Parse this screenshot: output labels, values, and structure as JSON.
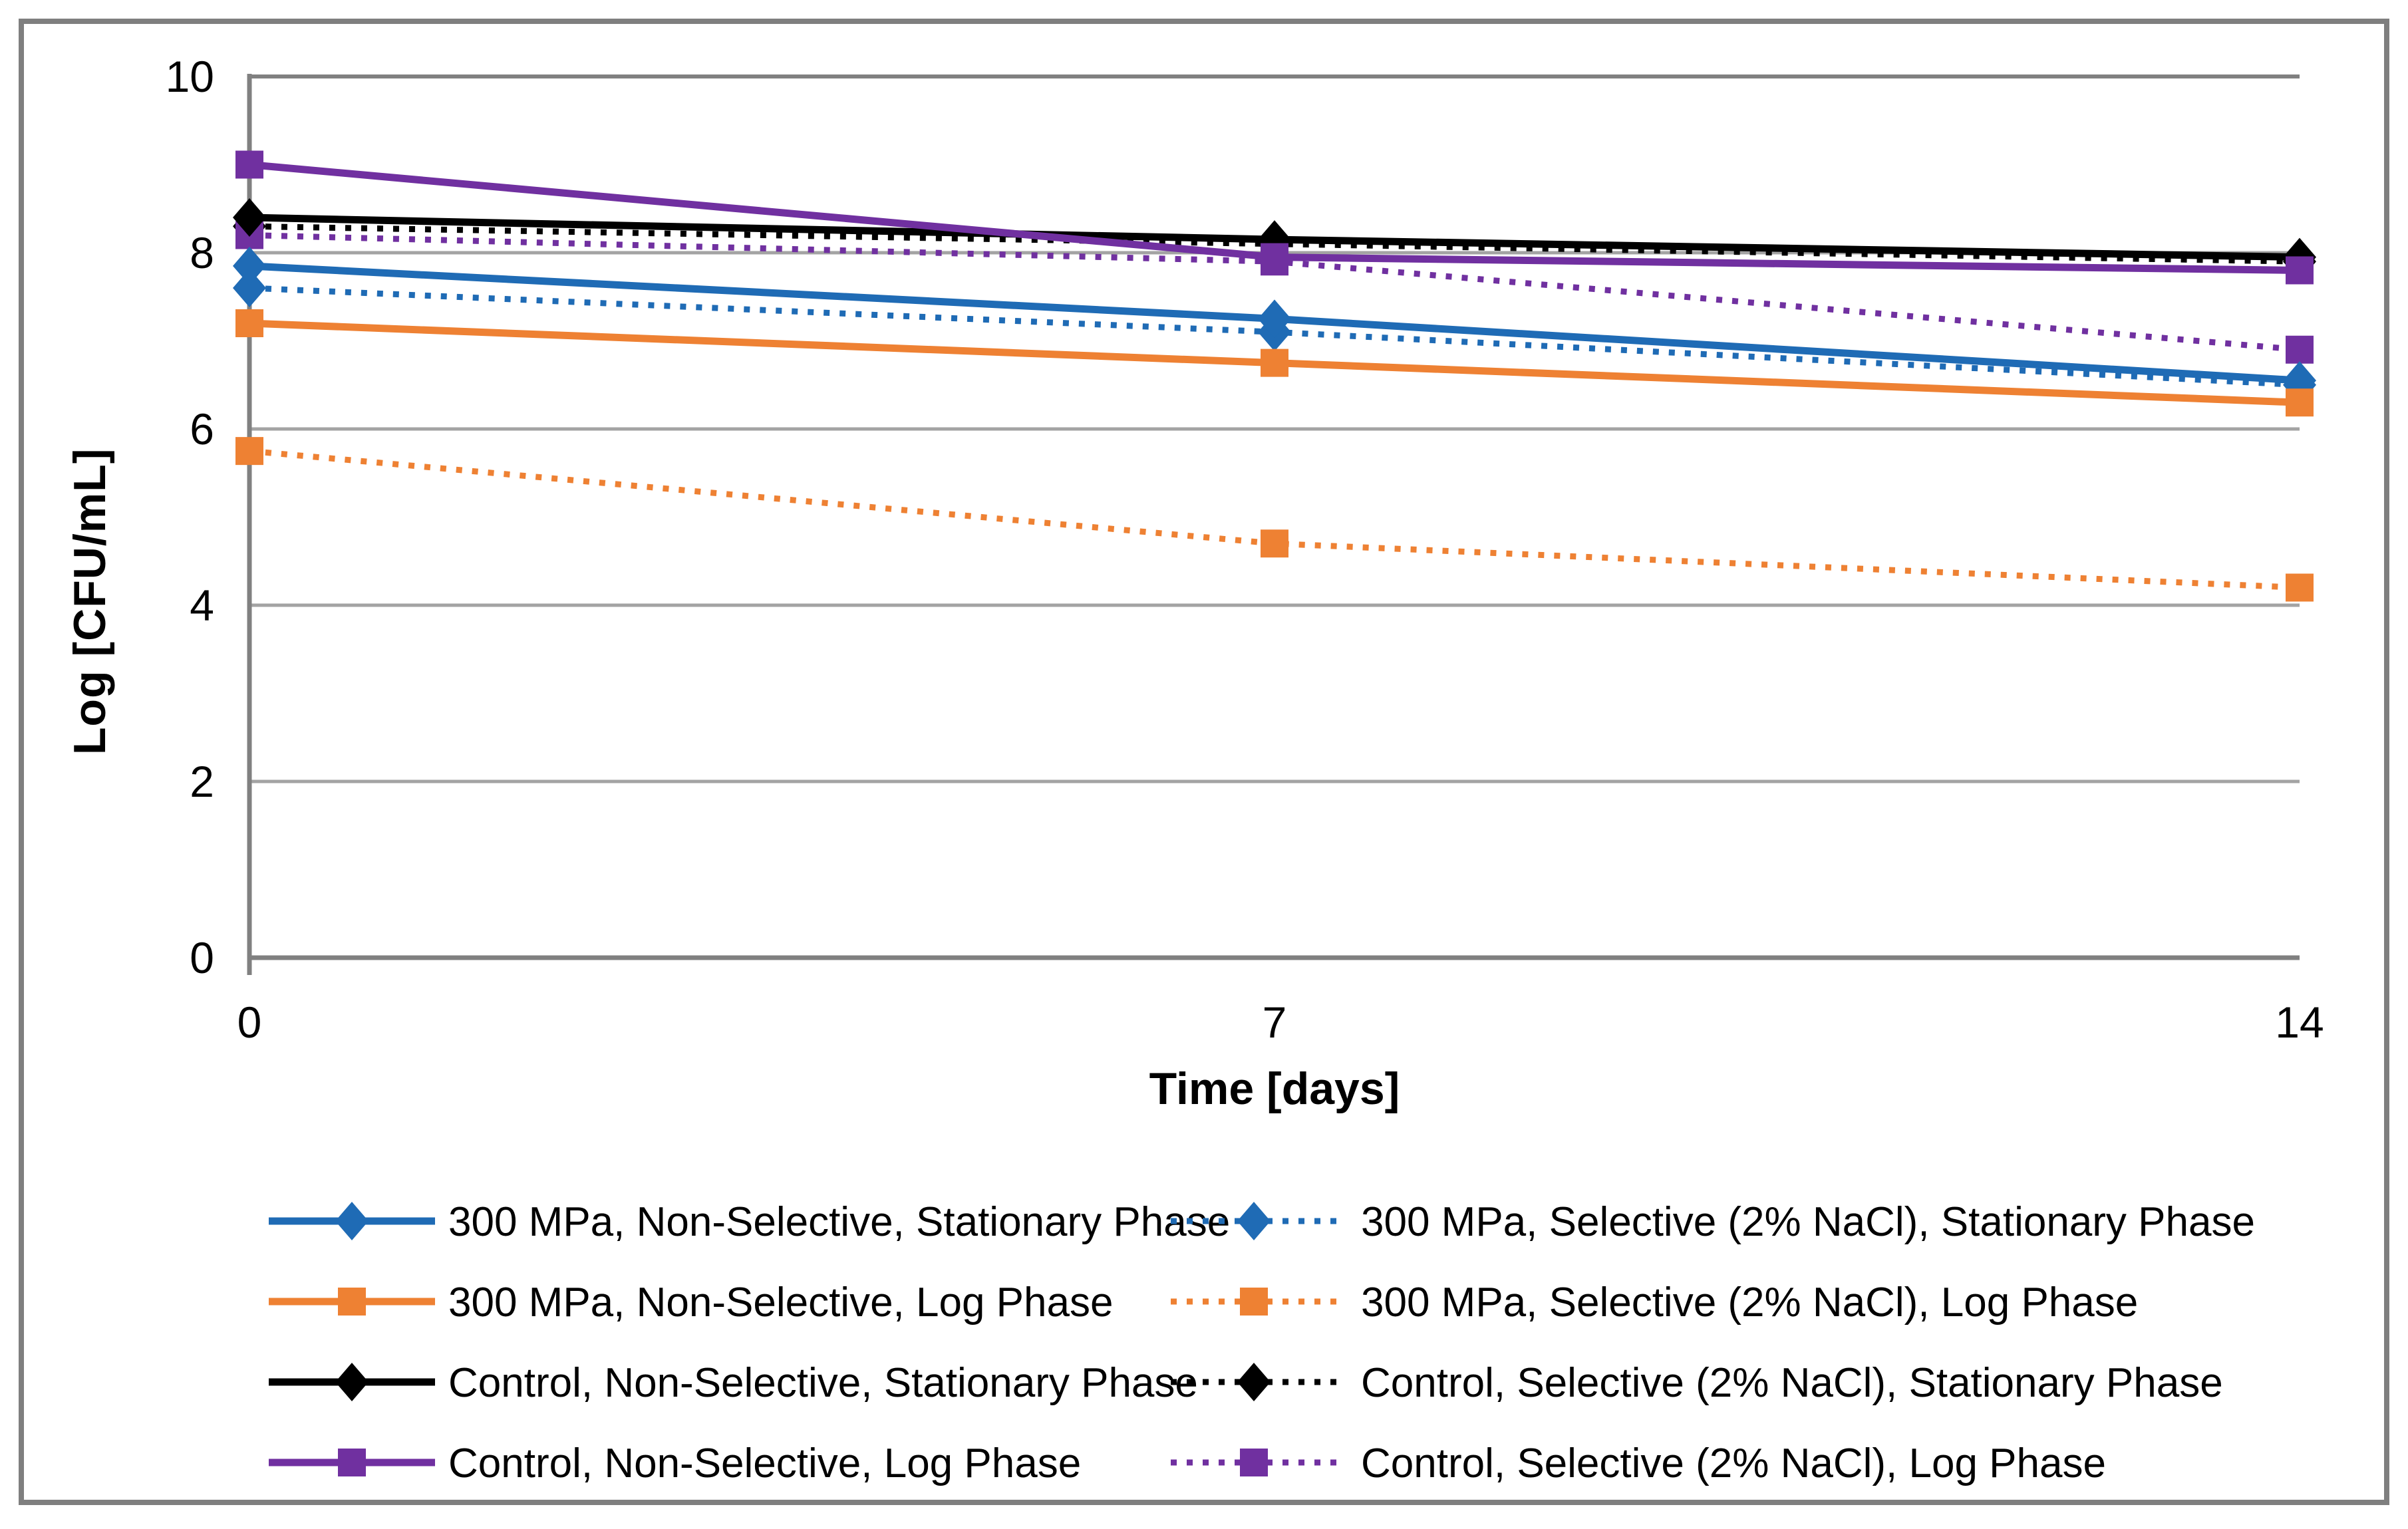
{
  "figure": {
    "background": "#FFFFFF",
    "border_color": "#7F7F7F",
    "frame_color": "#808080",
    "gridline_color": "#A3A3A3",
    "text_color": "#000000"
  },
  "axes": {
    "y_title": "Log [CFU/mL]",
    "x_title": "Time [days]"
  },
  "chart_data": {
    "type": "line",
    "x": [
      0,
      7,
      14
    ],
    "xlabel": "Time [days]",
    "ylabel": "Log [CFU/mL]",
    "xlim": [
      0,
      14
    ],
    "ylim": [
      0,
      10
    ],
    "y_tick_step": 2,
    "grid": true,
    "legend_position": "bottom, two columns (solid series left, dotted series right)",
    "series": [
      {
        "name": "300 MPa, Non-Selective, Stationary Phase",
        "color": "#1F6BB5",
        "line": "solid",
        "marker": "diamond",
        "values": [
          7.85,
          7.25,
          6.55
        ]
      },
      {
        "name": "300 MPa, Selective (2% NaCl), Stationary Phase",
        "color": "#1F6BB5",
        "line": "dotted",
        "marker": "diamond",
        "values": [
          7.6,
          7.1,
          6.5
        ]
      },
      {
        "name": "300 MPa, Non-Selective, Log Phase",
        "color": "#EE8133",
        "line": "solid",
        "marker": "square",
        "values": [
          7.2,
          6.75,
          6.3
        ]
      },
      {
        "name": "300 MPa, Selective (2% NaCl), Log Phase",
        "color": "#EE8133",
        "line": "dotted",
        "marker": "square",
        "values": [
          5.75,
          4.7,
          4.2
        ]
      },
      {
        "name": "Control, Non-Selective, Stationary Phase",
        "color": "#000000",
        "line": "solid",
        "marker": "diamond",
        "values": [
          8.4,
          8.15,
          7.95
        ]
      },
      {
        "name": "Control, Selective (2% NaCl), Stationary Phase",
        "color": "#000000",
        "line": "dotted",
        "marker": "diamond",
        "values": [
          8.3,
          8.1,
          7.9
        ]
      },
      {
        "name": "Control, Non-Selective, Log Phase",
        "color": "#7030A0",
        "line": "solid",
        "marker": "square",
        "values": [
          9.0,
          7.95,
          7.8
        ]
      },
      {
        "name": "Control, Selective (2% NaCl), Log Phase",
        "color": "#7030A0",
        "line": "dotted",
        "marker": "square",
        "values": [
          8.2,
          7.9,
          6.9
        ]
      }
    ]
  }
}
